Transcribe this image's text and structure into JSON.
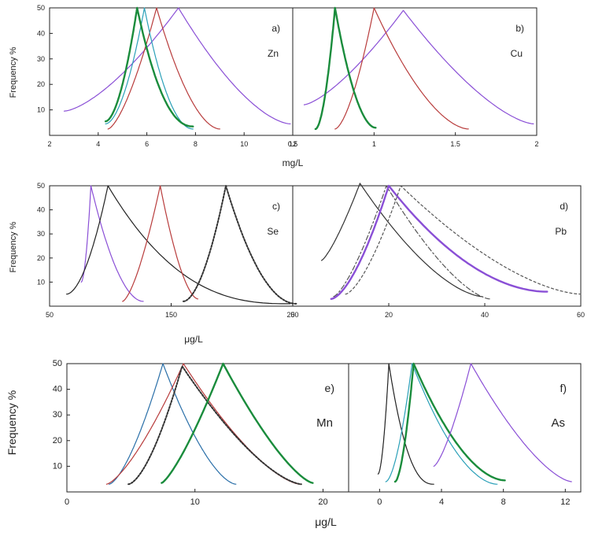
{
  "figure": {
    "rows": [
      {
        "ylabel": "Frequency %",
        "xlabel": "mg/L"
      },
      {
        "ylabel": "Frequency %",
        "xlabel": "μg/L"
      },
      {
        "ylabel": "Frequency %",
        "xlabel": "μg/L"
      }
    ]
  },
  "chart_data": [
    {
      "type": "line",
      "panel": "a)",
      "element": "Zn",
      "xlim": [
        2,
        12
      ],
      "ylim": [
        0,
        50
      ],
      "xticks": [
        2,
        4,
        6,
        8,
        10,
        12
      ],
      "yticks": [
        10,
        20,
        30,
        40,
        50
      ],
      "series": [
        {
          "color": "#8a4fd6",
          "width": 1.2,
          "dash": "",
          "peak": [
            7.3,
            50
          ],
          "left": [
            2.6,
            9.5
          ],
          "right": [
            11.9,
            4.5
          ],
          "cL": 1.5,
          "cR": 1.6
        },
        {
          "color": "#b83c3c",
          "width": 1.2,
          "dash": "",
          "peak": [
            6.4,
            50
          ],
          "left": [
            4.4,
            2.5
          ],
          "right": [
            9.0,
            2.5
          ],
          "cL": 1.5,
          "cR": 1.8
        },
        {
          "color": "#2aa0b8",
          "width": 1.2,
          "dash": "",
          "peak": [
            5.9,
            50
          ],
          "left": [
            4.3,
            4.5
          ],
          "right": [
            7.9,
            2.5
          ],
          "cL": 1.8,
          "cR": 2.0
        },
        {
          "color": "#1a8c3c",
          "width": 2.4,
          "dash": "",
          "peak": [
            5.6,
            50
          ],
          "left": [
            4.3,
            5.5
          ],
          "right": [
            7.9,
            3.5
          ],
          "cL": 1.8,
          "cR": 2.2
        }
      ]
    },
    {
      "type": "line",
      "panel": "b)",
      "element": "Cu",
      "xlim": [
        0.5,
        2.0
      ],
      "ylim": [
        0,
        50
      ],
      "xticks": [
        0.5,
        1.0,
        1.5,
        2.0
      ],
      "yticks": [
        10,
        20,
        30,
        40,
        50
      ],
      "series": [
        {
          "color": "#8a4fd6",
          "width": 1.2,
          "dash": "",
          "peak": [
            1.18,
            49
          ],
          "left": [
            0.57,
            12
          ],
          "right": [
            1.98,
            4.5
          ],
          "cL": 1.4,
          "cR": 1.5
        },
        {
          "color": "#b83c3c",
          "width": 1.2,
          "dash": "",
          "peak": [
            1.0,
            50
          ],
          "left": [
            0.76,
            2.5
          ],
          "right": [
            1.58,
            2.5
          ],
          "cL": 1.6,
          "cR": 1.7
        },
        {
          "color": "#1a8c3c",
          "width": 2.4,
          "dash": "",
          "peak": [
            0.76,
            50
          ],
          "left": [
            0.64,
            2.5
          ],
          "right": [
            1.01,
            3
          ],
          "cL": 1.8,
          "cR": 1.9
        }
      ]
    },
    {
      "type": "line",
      "panel": "c)",
      "element": "Se",
      "xlim": [
        50,
        250
      ],
      "ylim": [
        0,
        50
      ],
      "xticks": [
        50,
        150,
        250
      ],
      "yticks": [
        10,
        20,
        30,
        40,
        50
      ],
      "series": [
        {
          "color": "#8a4fd6",
          "width": 1.2,
          "dash": "",
          "peak": [
            84,
            50
          ],
          "left": [
            76,
            10
          ],
          "right": [
            127,
            2
          ],
          "cL": 1.8,
          "cR": 1.9
        },
        {
          "color": "#222222",
          "width": 1.2,
          "dash": "",
          "peak": [
            98,
            50
          ],
          "left": [
            64,
            5
          ],
          "right": [
            248,
            1
          ],
          "cL": 1.8,
          "cR": 2.6
        },
        {
          "color": "#b83c3c",
          "width": 1.2,
          "dash": "",
          "peak": [
            141,
            50
          ],
          "left": [
            110,
            2
          ],
          "right": [
            172,
            3
          ],
          "cL": 1.5,
          "cR": 1.7
        },
        {
          "color": "#333333",
          "width": 2.0,
          "dash": "2,2",
          "peak": [
            195,
            50
          ],
          "left": [
            160,
            2
          ],
          "right": [
            253,
            1
          ],
          "cL": 1.8,
          "cR": 2.0
        }
      ]
    },
    {
      "type": "line",
      "panel": "d)",
      "element": "Pb",
      "xlim": [
        0,
        60
      ],
      "ylim": [
        0,
        50
      ],
      "xticks": [
        0,
        20,
        40,
        60
      ],
      "yticks": [
        10,
        20,
        30,
        40,
        50
      ],
      "series": [
        {
          "color": "#333333",
          "width": 1.2,
          "dash": "",
          "peak": [
            14,
            51
          ],
          "left": [
            6,
            19
          ],
          "right": [
            39.5,
            4
          ],
          "cL": 1.3,
          "cR": 1.6
        },
        {
          "color": "#555555",
          "width": 1.2,
          "dash": "6,3,2,3",
          "peak": [
            19.5,
            50
          ],
          "left": [
            8.5,
            4
          ],
          "right": [
            41,
            3
          ],
          "cL": 1.4,
          "cR": 1.5
        },
        {
          "color": "#8a4fd6",
          "width": 2.4,
          "dash": "",
          "peak": [
            20,
            50
          ],
          "left": [
            8,
            3
          ],
          "right": [
            53,
            6
          ],
          "cL": 1.6,
          "cR": 1.9
        },
        {
          "color": "#555555",
          "width": 1.2,
          "dash": "3,3",
          "peak": [
            22.5,
            50
          ],
          "left": [
            11,
            5
          ],
          "right": [
            60,
            5
          ],
          "cL": 1.5,
          "cR": 1.6
        }
      ]
    },
    {
      "type": "line",
      "panel": "e)",
      "element": "Mn",
      "xlim": [
        0,
        22
      ],
      "ylim": [
        0,
        50
      ],
      "xticks": [
        0,
        10,
        20
      ],
      "yticks": [
        10,
        20,
        30,
        40,
        50
      ],
      "series": [
        {
          "color": "#2a6fa8",
          "width": 1.2,
          "dash": "",
          "peak": [
            7.5,
            50
          ],
          "left": [
            3.3,
            3
          ],
          "right": [
            13.2,
            3
          ],
          "cL": 1.5,
          "cR": 1.6
        },
        {
          "color": "#b83c3c",
          "width": 1.2,
          "dash": "",
          "peak": [
            9.1,
            50
          ],
          "left": [
            3.1,
            3
          ],
          "right": [
            18.2,
            3
          ],
          "cL": 1.4,
          "cR": 1.5
        },
        {
          "color": "#333333",
          "width": 2.0,
          "dash": "2,2",
          "peak": [
            9.0,
            49
          ],
          "left": [
            4.8,
            3
          ],
          "right": [
            18.3,
            3
          ],
          "cL": 1.6,
          "cR": 1.5
        },
        {
          "color": "#1a8c3c",
          "width": 2.4,
          "dash": "",
          "peak": [
            12.2,
            50
          ],
          "left": [
            7.4,
            3.5
          ],
          "right": [
            19.2,
            3.5
          ],
          "cL": 1.3,
          "cR": 1.4
        }
      ]
    },
    {
      "type": "line",
      "panel": "f)",
      "element": "As",
      "xlim": [
        -2,
        13
      ],
      "ylim": [
        0,
        50
      ],
      "xticks": [
        0,
        4,
        8,
        12
      ],
      "yticks": [
        10,
        20,
        30,
        40,
        50
      ],
      "series": [
        {
          "color": "#222222",
          "width": 1.2,
          "dash": "",
          "peak": [
            0.6,
            50
          ],
          "left": [
            -0.1,
            7
          ],
          "right": [
            3.5,
            3
          ],
          "cL": 1.8,
          "cR": 2.4
        },
        {
          "color": "#2aa0b8",
          "width": 1.2,
          "dash": "",
          "peak": [
            2.1,
            50
          ],
          "left": [
            0.4,
            4
          ],
          "right": [
            7.6,
            3
          ],
          "cL": 1.7,
          "cR": 1.8
        },
        {
          "color": "#1a8c3c",
          "width": 2.4,
          "dash": "",
          "peak": [
            2.2,
            50
          ],
          "left": [
            1.0,
            4
          ],
          "right": [
            8.1,
            4.5
          ],
          "cL": 1.7,
          "cR": 1.8
        },
        {
          "color": "#8a4fd6",
          "width": 1.2,
          "dash": "",
          "peak": [
            5.9,
            50
          ],
          "left": [
            3.5,
            10
          ],
          "right": [
            12.4,
            4
          ],
          "cL": 1.4,
          "cR": 1.5
        }
      ]
    }
  ]
}
